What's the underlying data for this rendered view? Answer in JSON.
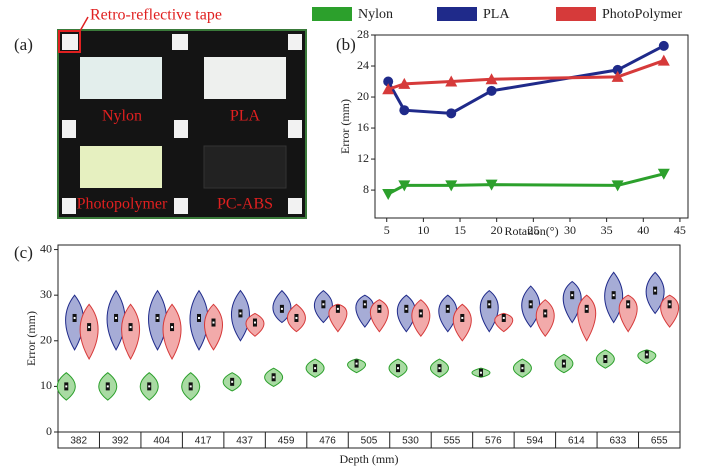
{
  "photo": {
    "panel_label": "(a)",
    "annotation": "Retro-reflective tape",
    "labels": [
      "Nylon",
      "PLA",
      "Photopolymer",
      "PC-ABS"
    ]
  },
  "chart_data": [
    {
      "type": "line",
      "panel_label": "(b)",
      "xlabel": "Rotation(°)",
      "ylabel": "Error (mm)",
      "x": [
        5.2,
        7.4,
        13.8,
        19.3,
        36.5,
        42.8
      ],
      "series": [
        {
          "name": "Nylon",
          "color": "#2ca02c",
          "marker": "triangle-down",
          "values": [
            7.5,
            8.6,
            8.6,
            8.7,
            8.6,
            10.1
          ]
        },
        {
          "name": "PLA",
          "color": "#1f2a8a",
          "marker": "circle",
          "values": [
            22,
            18.3,
            17.9,
            20.8,
            23.5,
            26.6
          ]
        },
        {
          "name": "PhotoPolymer",
          "color": "#d63a3a",
          "marker": "triangle-up",
          "values": [
            21,
            21.7,
            22,
            22.3,
            22.6,
            24.7
          ]
        }
      ],
      "xlim": [
        3.4,
        46.1
      ],
      "ylim": [
        4.4,
        28
      ],
      "xticks": [
        5,
        10,
        15,
        20,
        25,
        30,
        35,
        40,
        45
      ],
      "yticks": [
        8,
        12,
        16,
        20,
        24,
        28
      ]
    },
    {
      "type": "violin",
      "panel_label": "(c)",
      "xlabel": "Depth (mm)",
      "ylabel": "Error (mm)",
      "categories": [
        "382",
        "392",
        "404",
        "417",
        "437",
        "459",
        "476",
        "505",
        "530",
        "555",
        "576",
        "594",
        "614",
        "633",
        "655"
      ],
      "series": [
        {
          "color": "#2ca02c",
          "fill": "#a9dba3",
          "offset": 0.2,
          "values": [
            10,
            10,
            10,
            10,
            11,
            12,
            14,
            15,
            14,
            14,
            13,
            14,
            15,
            16,
            17
          ],
          "min": [
            7,
            7,
            7,
            7,
            9,
            10,
            12,
            13,
            12,
            12,
            12,
            12,
            13,
            14,
            15
          ],
          "max": [
            13,
            13,
            13,
            13,
            13,
            14,
            16,
            16,
            16,
            16,
            14,
            16,
            17,
            18,
            18
          ]
        },
        {
          "color": "#1f2a8a",
          "fill": "#a6acd6",
          "offset": 0.4,
          "values": [
            25,
            25,
            25,
            25,
            26,
            27,
            28,
            28,
            27,
            27,
            28,
            28,
            30,
            30,
            31
          ],
          "min": [
            18,
            18,
            18,
            18,
            20,
            24,
            24,
            23,
            22,
            22,
            22,
            23,
            24,
            24,
            26
          ],
          "max": [
            30,
            31,
            31,
            31,
            31,
            31,
            31,
            30,
            30,
            30,
            31,
            32,
            33,
            35,
            35
          ]
        },
        {
          "color": "#d63a3a",
          "fill": "#f2aaaa",
          "offset": 0.75,
          "values": [
            23,
            23,
            23,
            24,
            24,
            25,
            27,
            27,
            26,
            25,
            25,
            26,
            27,
            28,
            28
          ],
          "min": [
            16,
            16,
            16,
            18,
            21,
            22,
            22,
            22,
            21,
            20,
            22,
            21,
            20,
            22,
            23
          ],
          "max": [
            28,
            28,
            28,
            28,
            26,
            28,
            28,
            29,
            29,
            28,
            26,
            29,
            30,
            30,
            30
          ]
        }
      ],
      "ylim": [
        0,
        41
      ],
      "yticks": [
        0,
        10,
        20,
        30,
        40
      ]
    }
  ]
}
